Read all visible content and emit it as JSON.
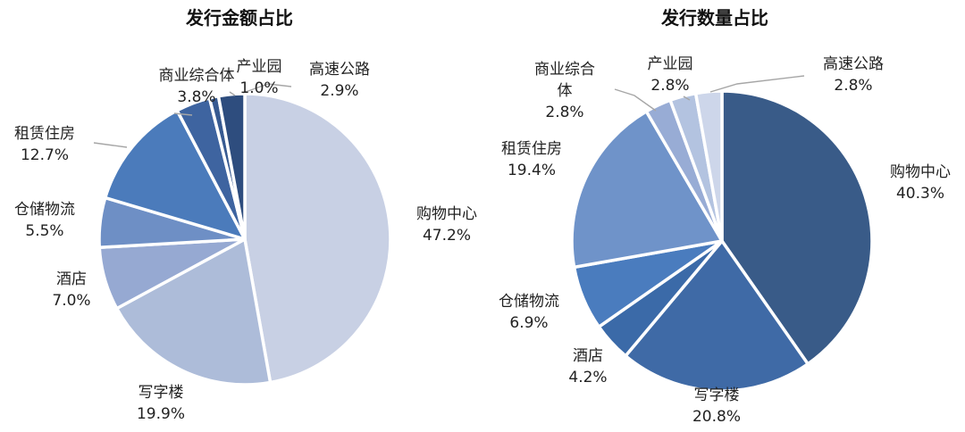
{
  "chart_data": [
    {
      "type": "pie",
      "title": "发行金额占比",
      "unit": "%",
      "slices": [
        {
          "name": "购物中心",
          "value": 47.2,
          "label": "47.2%",
          "color": "#c8d0e4"
        },
        {
          "name": "写字楼",
          "value": 19.9,
          "label": "19.9%",
          "color": "#adbcd9"
        },
        {
          "name": "酒店",
          "value": 7.0,
          "label": "7.0%",
          "color": "#96a9d2"
        },
        {
          "name": "仓储物流",
          "value": 5.5,
          "label": "5.5%",
          "color": "#6e8fc5"
        },
        {
          "name": "租赁住房",
          "value": 12.7,
          "label": "12.7%",
          "color": "#4b7bbb"
        },
        {
          "name": "商业综合体",
          "value": 3.8,
          "label": "3.8%",
          "color": "#3e64a0"
        },
        {
          "name": "产业园",
          "value": 1.0,
          "label": "1.0%",
          "color": "#375a91"
        },
        {
          "name": "高速公路",
          "value": 2.9,
          "label": "2.9%",
          "color": "#2e4d7e"
        }
      ]
    },
    {
      "type": "pie",
      "title": "发行数量占比",
      "unit": "%",
      "slices": [
        {
          "name": "购物中心",
          "value": 40.3,
          "label": "40.3%",
          "color": "#395b88"
        },
        {
          "name": "写字楼",
          "value": 20.8,
          "label": "20.8%",
          "color": "#3f6aa6"
        },
        {
          "name": "酒店",
          "value": 4.2,
          "label": "4.2%",
          "color": "#3b6aa8"
        },
        {
          "name": "仓储物流",
          "value": 6.9,
          "label": "6.9%",
          "color": "#4a7cbe"
        },
        {
          "name": "租赁住房",
          "value": 19.4,
          "label": "19.4%",
          "color": "#6f93c9"
        },
        {
          "name": "商业综合体",
          "value": 2.8,
          "label": "2.8%",
          "color": "#98acd5"
        },
        {
          "name": "产业园",
          "value": 2.8,
          "label": "2.8%",
          "color": "#b3c3e0"
        },
        {
          "name": "高速公路",
          "value": 2.8,
          "label": "2.8%",
          "color": "#cdd6ea"
        }
      ]
    }
  ]
}
